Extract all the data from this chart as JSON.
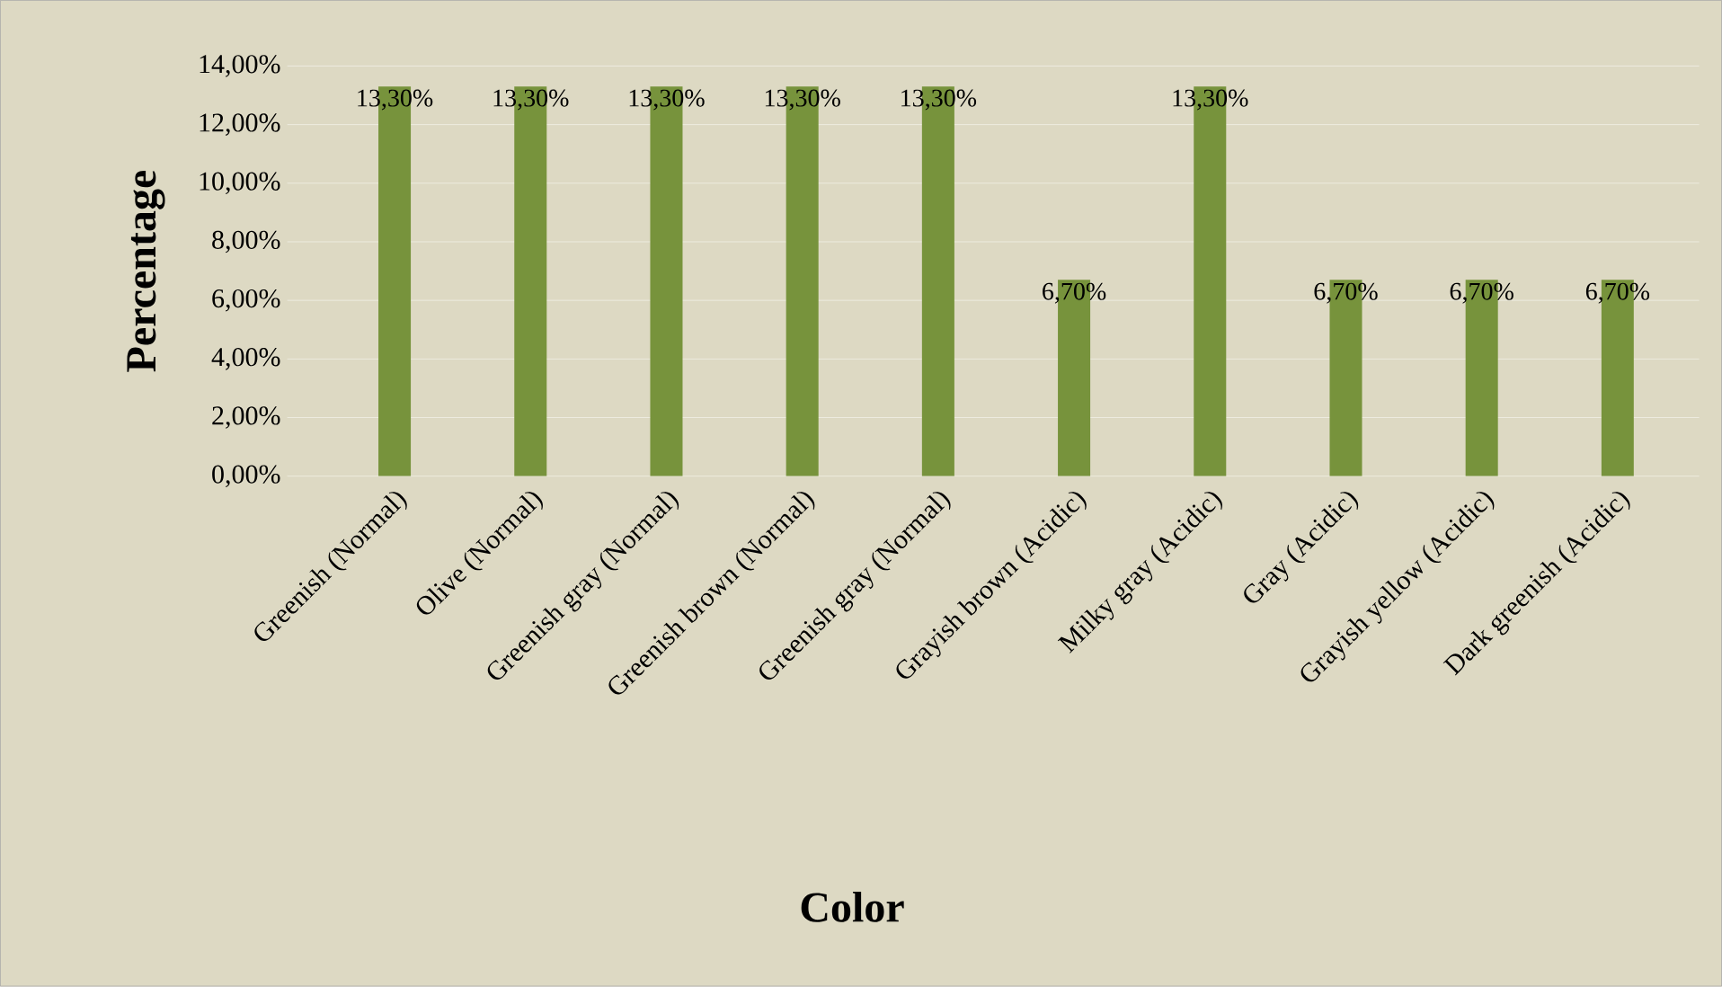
{
  "chart_data": {
    "type": "bar",
    "xlabel": "Color",
    "ylabel": "Percentage",
    "categories": [
      "Greenish (Normal)",
      "Olive (Normal)",
      "Greenish gray (Normal)",
      "Greenish brown (Normal)",
      "Greenish gray (Normal)",
      "Grayish brown (Acidic)",
      "Milky gray (Acidic)",
      "Gray (Acidic)",
      "Grayish yellow (Acidic)",
      "Dark greenish (Acidic)"
    ],
    "values": [
      13.3,
      13.3,
      13.3,
      13.3,
      13.3,
      6.7,
      13.3,
      6.7,
      6.7,
      6.7
    ],
    "value_labels": [
      "13,30%",
      "13,30%",
      "13,30%",
      "13,30%",
      "13,30%",
      "6,70%",
      "13,30%",
      "6,70%",
      "6,70%",
      "6,70%"
    ],
    "color": "#77933c",
    "ylim": [
      0,
      14
    ],
    "yticks": [
      {
        "value": 0,
        "label": "0,00%"
      },
      {
        "value": 2,
        "label": "2,00%"
      },
      {
        "value": 4,
        "label": "4,00%"
      },
      {
        "value": 6,
        "label": "6,00%"
      },
      {
        "value": 8,
        "label": "8,00%"
      },
      {
        "value": 10,
        "label": "10,00%"
      },
      {
        "value": 12,
        "label": "12,00%"
      },
      {
        "value": 14,
        "label": "14,00%"
      }
    ],
    "grid": "y"
  }
}
